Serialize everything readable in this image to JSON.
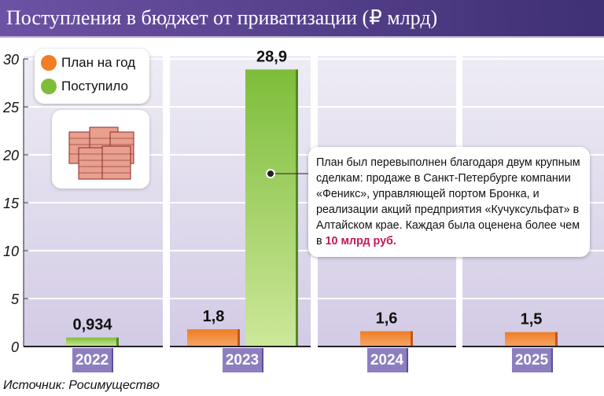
{
  "title": "Поступления в бюджет от приватизации (₽ млрд)",
  "legend": {
    "plan": "План на год",
    "received": "Поступило"
  },
  "colors": {
    "plan": "#f07d22",
    "received": "#7dbd3a",
    "panel": "#d9d2ea",
    "year_box": "#8d7fbf"
  },
  "icons": [
    "money-stack-icon"
  ],
  "callout": {
    "text": "План был перевыполнен благодаря двум крупным сделкам: продаже в Санкт-Петербурге компании «Феникс», управляющей портом Бронка, и реализации акций предприятия «Кучуксульфат» в Алтайском крае. Каждая была оценена более чем в ",
    "highlight": "10 млрд руб."
  },
  "source": "Источник: Росимущество",
  "chart_data": {
    "type": "bar",
    "categories": [
      "2022",
      "2023",
      "2024",
      "2025"
    ],
    "series": [
      {
        "name": "План на год",
        "values": [
          null,
          1.8,
          1.6,
          1.5
        ],
        "labels": [
          "",
          "1,8",
          "1,6",
          "1,5"
        ]
      },
      {
        "name": "Поступило",
        "values": [
          0.934,
          28.9,
          null,
          null
        ],
        "labels": [
          "0,934",
          "28,9",
          "",
          ""
        ]
      }
    ],
    "ylim": [
      0,
      30
    ],
    "yticks": [
      "0",
      "5",
      "10",
      "15",
      "20",
      "25",
      "30"
    ],
    "grid": true,
    "legend": "top-left"
  }
}
